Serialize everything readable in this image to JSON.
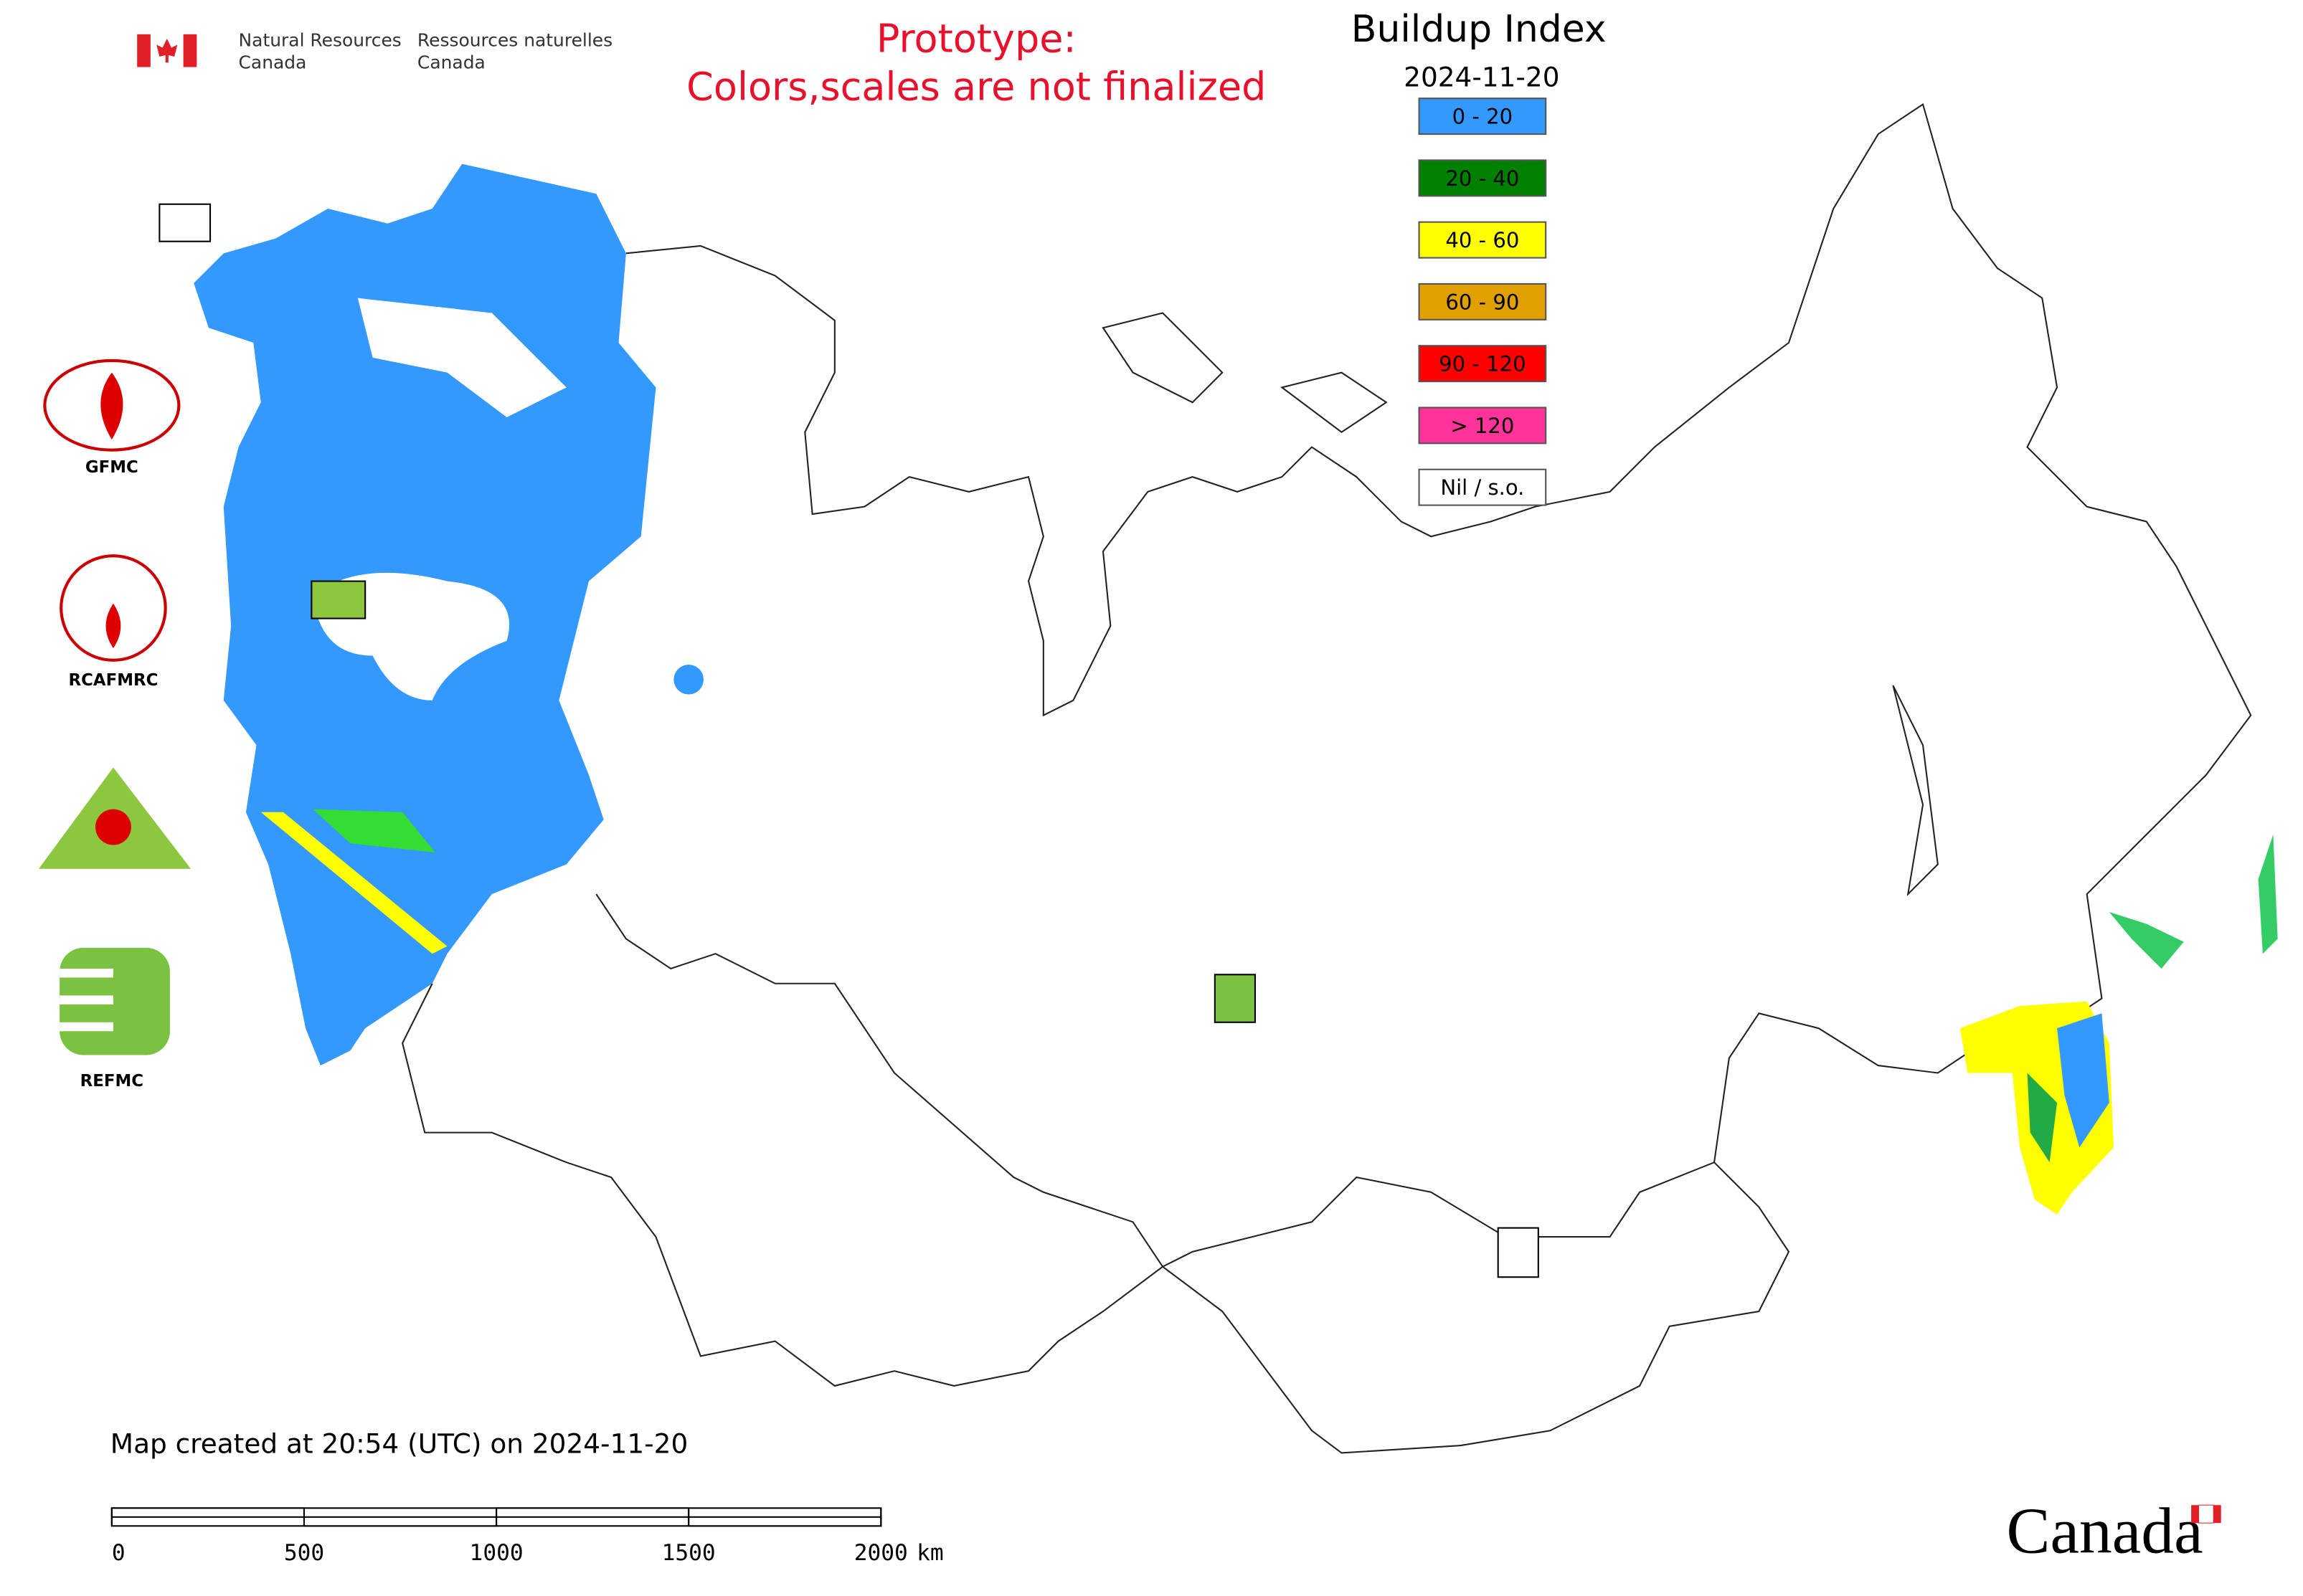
{
  "header": {
    "agency_en_1": "Natural Resources",
    "agency_en_2": "Canada",
    "agency_fr_1": "Ressources naturelles",
    "agency_fr_2": "Canada"
  },
  "notice": [
    "Prototype:",
    "Colors,scales are not finalized"
  ],
  "map": {
    "title": "Buildup Index",
    "date": "2024-11-20",
    "legend": [
      {
        "label": "0 - 20",
        "color": "#3399ff"
      },
      {
        "label": "20 - 40",
        "color": "#008000"
      },
      {
        "label": "40 - 60",
        "color": "#ffff00"
      },
      {
        "label": "60 - 90",
        "color": "#e0a000"
      },
      {
        "label": "90 - 120",
        "color": "#ff0000"
      },
      {
        "label": "> 120",
        "color": "#ff3399"
      },
      {
        "label": "Nil / s.o.",
        "color": "#ffffff"
      }
    ]
  },
  "partners": [
    "GFMC",
    "RCAFMRC",
    "REFMC"
  ],
  "footer": {
    "created": "Map created at 20:54 (UTC) on 2024-11-20",
    "scale_bar": {
      "ticks": [
        0,
        500,
        1000,
        1500,
        2000
      ],
      "unit": "km"
    },
    "wordmark": "Canada"
  }
}
